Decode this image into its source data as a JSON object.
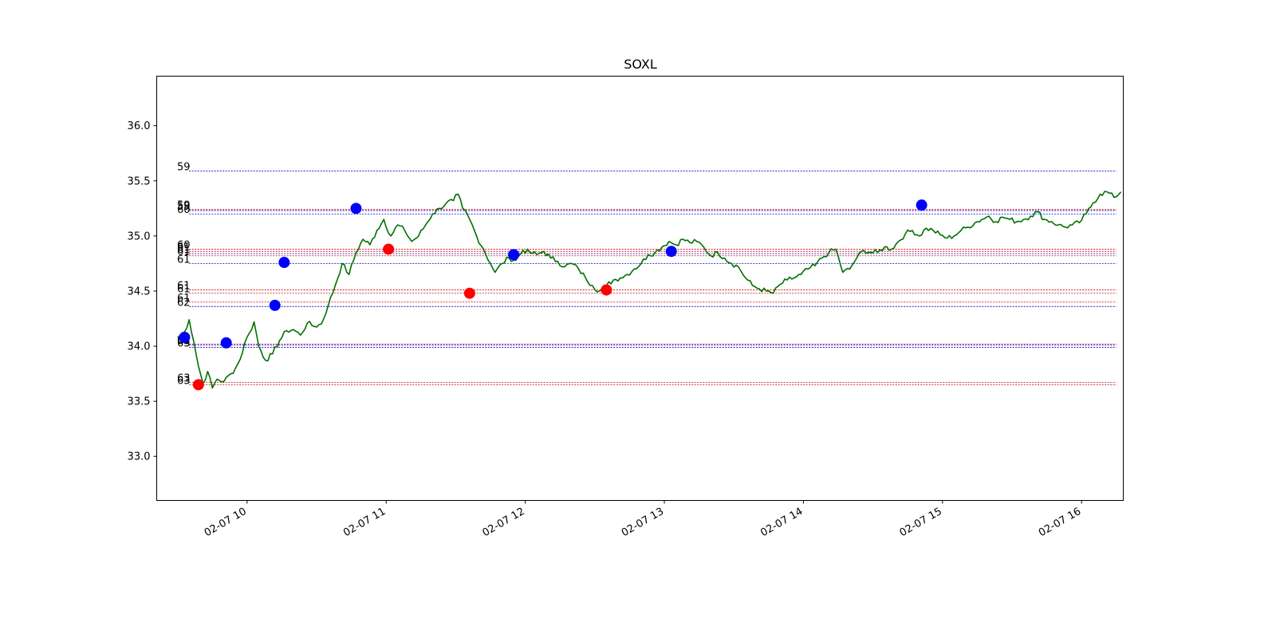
{
  "chart_data": {
    "type": "line",
    "title": "SOXL",
    "xlabel": "",
    "ylabel": "",
    "grid": false,
    "x_unit": "time (2024-02-07)",
    "xlim": [
      "09:21",
      "16:18"
    ],
    "ylim": [
      32.6,
      36.45
    ],
    "yticks": [
      "33.0",
      "33.5",
      "34.0",
      "34.5",
      "35.0",
      "35.5",
      "36.0"
    ],
    "xticks": [
      "02-07 10",
      "02-07 11",
      "02-07 12",
      "02-07 13",
      "02-07 14",
      "02-07 15",
      "02-07 16"
    ],
    "series_color": "#007000",
    "price_anchors": [
      [
        "09:30",
        34.08
      ],
      [
        "09:33",
        34.13
      ],
      [
        "09:35",
        34.24
      ],
      [
        "09:37",
        34.04
      ],
      [
        "09:39",
        33.82
      ],
      [
        "09:41",
        33.66
      ],
      [
        "09:43",
        33.77
      ],
      [
        "09:45",
        33.62
      ],
      [
        "09:47",
        33.7
      ],
      [
        "09:50",
        33.68
      ],
      [
        "09:53",
        33.75
      ],
      [
        "09:55",
        33.8
      ],
      [
        "09:57",
        33.88
      ],
      [
        "09:59",
        34.03
      ],
      [
        "10:01",
        34.12
      ],
      [
        "10:03",
        34.22
      ],
      [
        "10:05",
        34.0
      ],
      [
        "10:08",
        33.87
      ],
      [
        "10:11",
        33.93
      ],
      [
        "10:14",
        34.05
      ],
      [
        "10:17",
        34.14
      ],
      [
        "10:20",
        34.15
      ],
      [
        "10:23",
        34.1
      ],
      [
        "10:26",
        34.21
      ],
      [
        "10:29",
        34.18
      ],
      [
        "10:32",
        34.2
      ],
      [
        "10:35",
        34.37
      ],
      [
        "10:38",
        34.55
      ],
      [
        "10:41",
        34.75
      ],
      [
        "10:44",
        34.65
      ],
      [
        "10:47",
        34.85
      ],
      [
        "10:50",
        34.97
      ],
      [
        "10:53",
        34.92
      ],
      [
        "10:56",
        35.05
      ],
      [
        "10:59",
        35.15
      ],
      [
        "11:02",
        35.0
      ],
      [
        "11:05",
        35.1
      ],
      [
        "11:08",
        35.05
      ],
      [
        "11:11",
        34.95
      ],
      [
        "11:14",
        35.0
      ],
      [
        "11:17",
        35.1
      ],
      [
        "11:20",
        35.2
      ],
      [
        "11:23",
        35.25
      ],
      [
        "11:26",
        35.3
      ],
      [
        "11:29",
        35.32
      ],
      [
        "11:31",
        35.38
      ],
      [
        "11:33",
        35.25
      ],
      [
        "11:36",
        35.15
      ],
      [
        "11:39",
        35.0
      ],
      [
        "11:42",
        34.88
      ],
      [
        "11:45",
        34.75
      ],
      [
        "11:47",
        34.67
      ],
      [
        "11:50",
        34.75
      ],
      [
        "11:53",
        34.8
      ],
      [
        "11:56",
        34.78
      ],
      [
        "11:59",
        34.87
      ],
      [
        "12:02",
        34.85
      ],
      [
        "12:05",
        34.83
      ],
      [
        "12:08",
        34.86
      ],
      [
        "12:11",
        34.8
      ],
      [
        "12:14",
        34.77
      ],
      [
        "12:17",
        34.72
      ],
      [
        "12:20",
        34.75
      ],
      [
        "12:23",
        34.7
      ],
      [
        "12:26",
        34.62
      ],
      [
        "12:29",
        34.55
      ],
      [
        "12:32",
        34.5
      ],
      [
        "12:35",
        34.55
      ],
      [
        "12:38",
        34.6
      ],
      [
        "12:41",
        34.62
      ],
      [
        "12:44",
        34.65
      ],
      [
        "12:47",
        34.7
      ],
      [
        "12:50",
        34.75
      ],
      [
        "12:53",
        34.83
      ],
      [
        "12:56",
        34.85
      ],
      [
        "12:59",
        34.9
      ],
      [
        "13:02",
        34.95
      ],
      [
        "13:05",
        34.92
      ],
      [
        "13:08",
        34.97
      ],
      [
        "13:11",
        34.94
      ],
      [
        "13:14",
        34.95
      ],
      [
        "13:17",
        34.9
      ],
      [
        "13:20",
        34.82
      ],
      [
        "13:23",
        34.85
      ],
      [
        "13:26",
        34.8
      ],
      [
        "13:29",
        34.75
      ],
      [
        "13:32",
        34.72
      ],
      [
        "13:35",
        34.62
      ],
      [
        "13:38",
        34.55
      ],
      [
        "13:41",
        34.52
      ],
      [
        "13:44",
        34.5
      ],
      [
        "13:47",
        34.48
      ],
      [
        "13:50",
        34.56
      ],
      [
        "13:53",
        34.6
      ],
      [
        "13:56",
        34.62
      ],
      [
        "13:59",
        34.65
      ],
      [
        "14:02",
        34.7
      ],
      [
        "14:05",
        34.73
      ],
      [
        "14:08",
        34.8
      ],
      [
        "14:11",
        34.85
      ],
      [
        "14:14",
        34.88
      ],
      [
        "14:17",
        34.67
      ],
      [
        "14:20",
        34.7
      ],
      [
        "14:23",
        34.8
      ],
      [
        "14:26",
        34.87
      ],
      [
        "14:29",
        34.85
      ],
      [
        "14:32",
        34.85
      ],
      [
        "14:35",
        34.9
      ],
      [
        "14:38",
        34.88
      ],
      [
        "14:41",
        34.95
      ],
      [
        "14:44",
        35.02
      ],
      [
        "14:47",
        35.05
      ],
      [
        "14:50",
        35.0
      ],
      [
        "14:53",
        35.07
      ],
      [
        "14:56",
        35.05
      ],
      [
        "14:59",
        35.01
      ],
      [
        "15:02",
        34.98
      ],
      [
        "15:05",
        35.0
      ],
      [
        "15:08",
        35.05
      ],
      [
        "15:11",
        35.08
      ],
      [
        "15:14",
        35.12
      ],
      [
        "15:17",
        35.15
      ],
      [
        "15:20",
        35.18
      ],
      [
        "15:23",
        35.13
      ],
      [
        "15:26",
        35.17
      ],
      [
        "15:29",
        35.15
      ],
      [
        "15:32",
        35.13
      ],
      [
        "15:35",
        35.15
      ],
      [
        "15:38",
        35.18
      ],
      [
        "15:41",
        35.22
      ],
      [
        "15:44",
        35.15
      ],
      [
        "15:47",
        35.13
      ],
      [
        "15:50",
        35.1
      ],
      [
        "15:53",
        35.08
      ],
      [
        "15:56",
        35.1
      ],
      [
        "15:59",
        35.12
      ],
      [
        "16:02",
        35.2
      ],
      [
        "16:05",
        35.3
      ],
      [
        "16:08",
        35.38
      ],
      [
        "16:11",
        35.4
      ],
      [
        "16:14",
        35.35
      ],
      [
        "16:17",
        35.4
      ]
    ],
    "markers": [
      {
        "x": "09:33",
        "y": 34.08,
        "color": "#0000ff"
      },
      {
        "x": "09:39",
        "y": 33.65,
        "color": "#ff0000"
      },
      {
        "x": "09:51",
        "y": 34.03,
        "color": "#0000ff"
      },
      {
        "x": "10:12",
        "y": 34.37,
        "color": "#0000ff"
      },
      {
        "x": "10:16",
        "y": 34.76,
        "color": "#0000ff"
      },
      {
        "x": "10:47",
        "y": 35.25,
        "color": "#0000ff"
      },
      {
        "x": "11:01",
        "y": 34.88,
        "color": "#ff0000"
      },
      {
        "x": "11:36",
        "y": 34.48,
        "color": "#ff0000"
      },
      {
        "x": "11:55",
        "y": 34.83,
        "color": "#0000ff"
      },
      {
        "x": "12:35",
        "y": 34.51,
        "color": "#ff0000"
      },
      {
        "x": "13:03",
        "y": 34.86,
        "color": "#0000ff"
      },
      {
        "x": "14:51",
        "y": 35.28,
        "color": "#0000ff"
      }
    ],
    "levels": [
      {
        "label": "59",
        "y": 35.59,
        "color": "#0000cc"
      },
      {
        "label": "59",
        "y": 35.24,
        "color": "#cc0000"
      },
      {
        "label": "59",
        "y": 35.23,
        "color": "#0000cc"
      },
      {
        "label": "60",
        "y": 35.2,
        "color": "#0000cc"
      },
      {
        "label": "60",
        "y": 34.88,
        "color": "#cc0000"
      },
      {
        "label": "61",
        "y": 34.86,
        "color": "#cc0000"
      },
      {
        "label": "61",
        "y": 34.84,
        "color": "#0000cc"
      },
      {
        "label": "61",
        "y": 34.82,
        "color": "#cc0000"
      },
      {
        "label": "61",
        "y": 34.75,
        "color": "#0000cc"
      },
      {
        "label": "61",
        "y": 34.51,
        "color": "#cc0000"
      },
      {
        "label": "61",
        "y": 34.48,
        "color": "#cc0000"
      },
      {
        "label": "61",
        "y": 34.4,
        "color": "#cc0000"
      },
      {
        "label": "62",
        "y": 34.36,
        "color": "#0000cc"
      },
      {
        "label": "62",
        "y": 34.02,
        "color": "#cc0000"
      },
      {
        "label": "63",
        "y": 34.01,
        "color": "#0000cc"
      },
      {
        "label": "63",
        "y": 33.99,
        "color": "#0000cc"
      },
      {
        "label": "63",
        "y": 33.67,
        "color": "#cc0000"
      },
      {
        "label": "63",
        "y": 33.65,
        "color": "#cc0000"
      }
    ],
    "levels_x_range": [
      "09:35",
      "16:15"
    ]
  }
}
